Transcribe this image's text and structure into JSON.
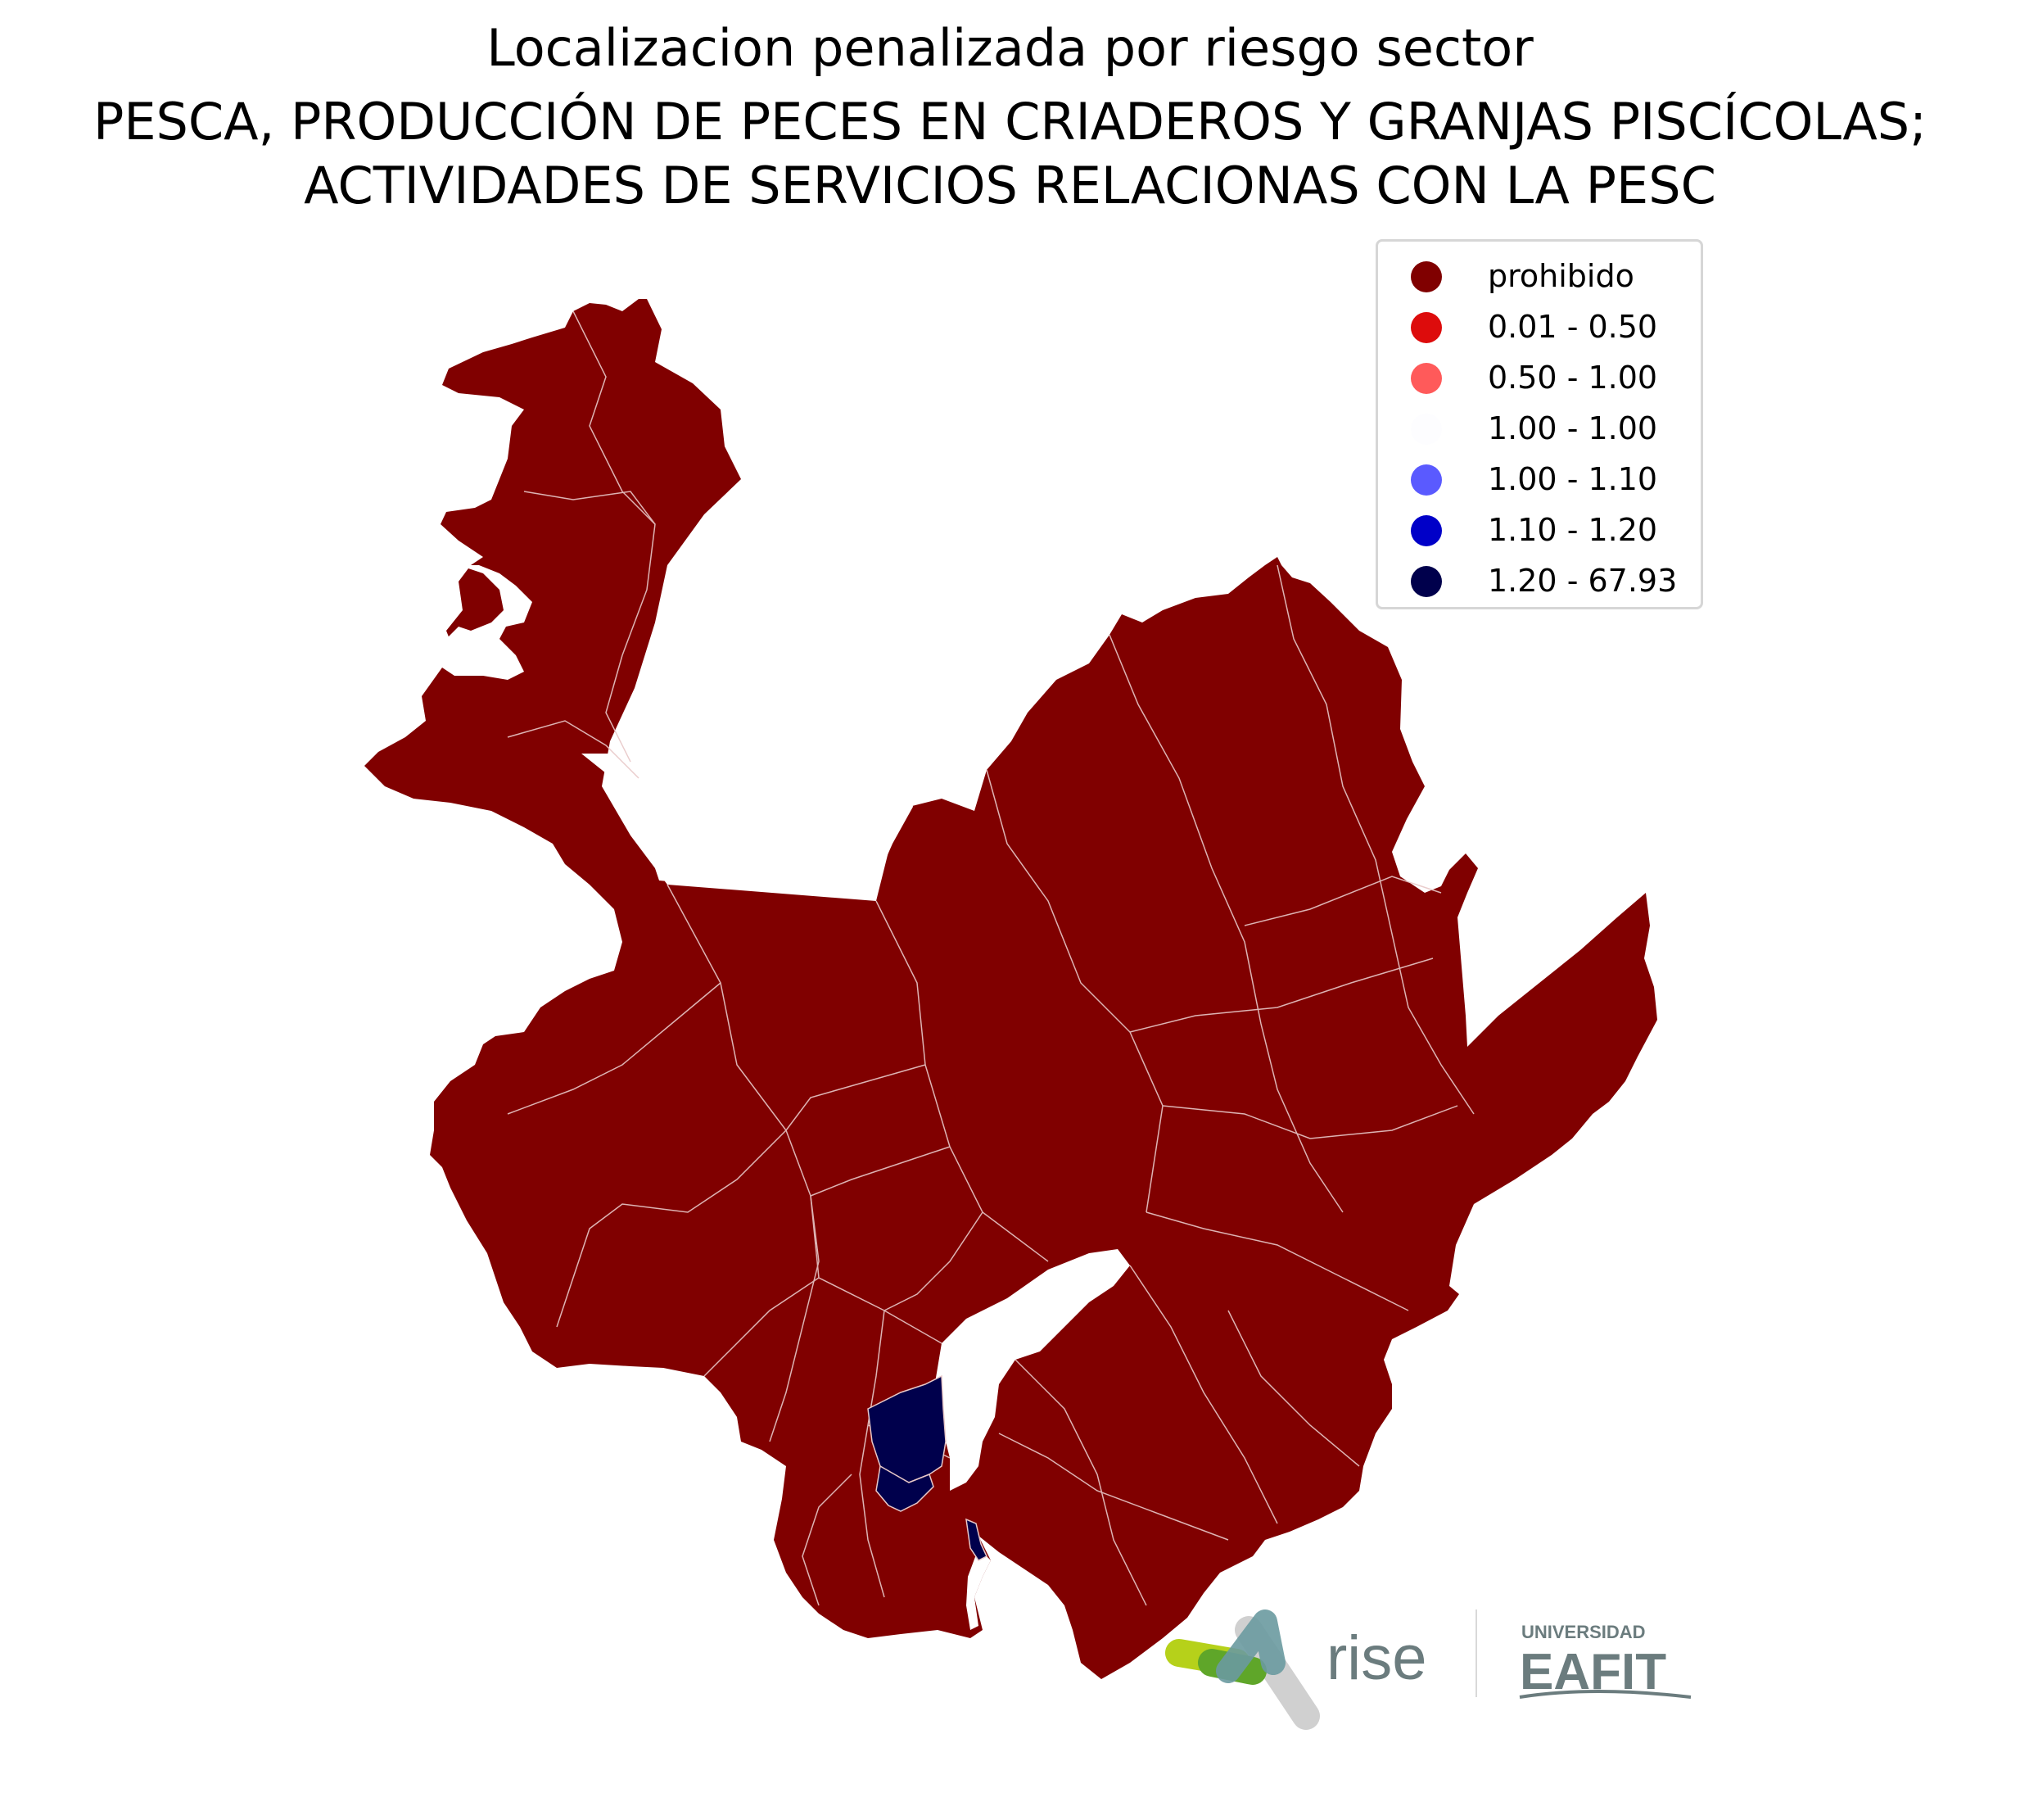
{
  "title": {
    "line1": "Localizacion penalizada por riesgo sector",
    "line2": "PESCA, PRODUCCIÓN DE PECES EN CRIADEROS Y GRANJAS PISCÍCOLAS;",
    "line3": "ACTIVIDADES DE SERVICIOS RELACIONAS CON LA PESC"
  },
  "legend": {
    "items": [
      {
        "label": "prohibido",
        "color": "#800000"
      },
      {
        "label": "0.01 - 0.50",
        "color": "#dd0c0c"
      },
      {
        "label": "0.50 - 1.00",
        "color": "#ff5a5a"
      },
      {
        "label": "1.00 - 1.00",
        "color": "#fdfdff"
      },
      {
        "label": "1.00 - 1.10",
        "color": "#5a5aff"
      },
      {
        "label": "1.10 - 1.20",
        "color": "#0000c8"
      },
      {
        "label": "1.20 - 67.93",
        "color": "#00004c"
      }
    ]
  },
  "map": {
    "dominant_class": "prohibido",
    "highlighted_class": "1.20 - 67.93",
    "border_color": "#e8c8c8"
  },
  "logos": {
    "rise": "rise",
    "eafit_top": "UNIVERSIDAD",
    "eafit_main": "EAFIT"
  }
}
